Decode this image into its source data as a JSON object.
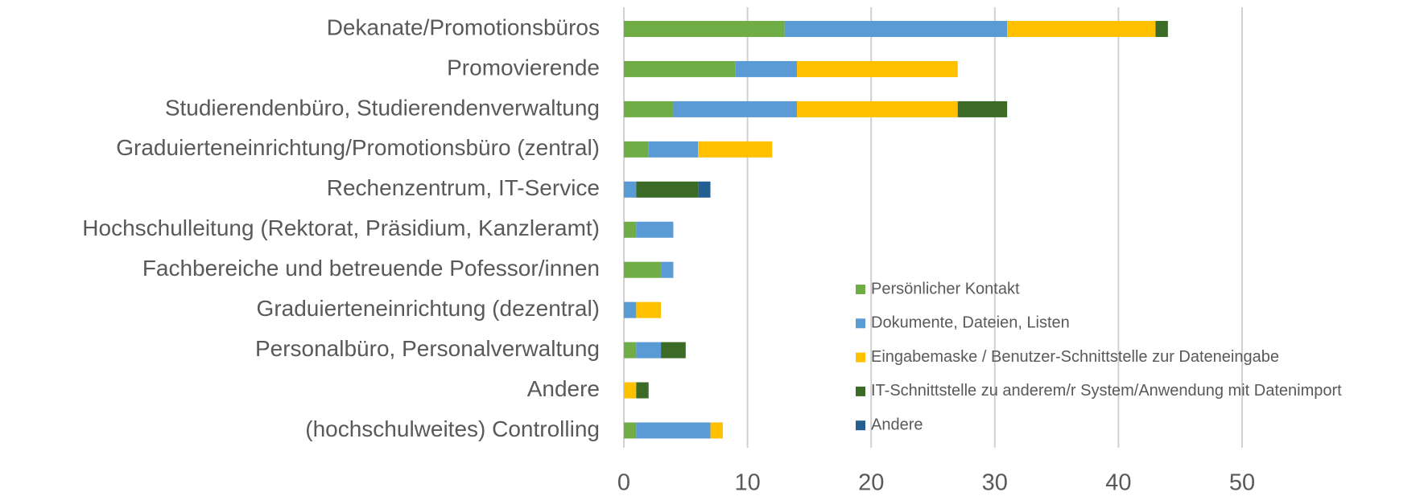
{
  "chart_data": {
    "type": "stacked_barh",
    "categories": [
      "Dekanate/Promotionsbüros",
      "Promovierende",
      "Studierendenbüro, Studierendenverwaltung",
      "Graduierteneinrichtung/Promotionsbüro (zentral)",
      "Rechenzentrum, IT-Service",
      "Hochschulleitung (Rektorat, Präsidium, Kanzleramt)",
      "Fachbereiche und betreuende Pofessor/innen",
      "Graduierteneinrichtung (dezentral)",
      "Personalbüro, Personalverwaltung",
      "Andere",
      "(hochschulweites) Controlling"
    ],
    "series": [
      {
        "name": "Persönlicher Kontakt",
        "color": "#70ad47",
        "values": [
          13,
          9,
          4,
          2,
          0,
          1,
          3,
          0,
          1,
          0,
          1
        ]
      },
      {
        "name": "Dokumente, Dateien, Listen",
        "color": "#5b9bd5",
        "values": [
          18,
          5,
          10,
          4,
          1,
          3,
          1,
          1,
          2,
          0,
          6
        ]
      },
      {
        "name": "Eingabemaske / Benutzer-Schnittstelle zur Dateneingabe",
        "color": "#ffc000",
        "values": [
          12,
          13,
          13,
          6,
          0,
          0,
          0,
          2,
          0,
          1,
          1
        ]
      },
      {
        "name": "IT-Schnittstelle zu anderem/r System/Anwendung mit Datenimport",
        "color": "#3b6b27",
        "values": [
          1,
          0,
          4,
          0,
          5,
          0,
          0,
          0,
          2,
          1,
          0
        ]
      },
      {
        "name": "Andere",
        "color": "#255e91",
        "values": [
          0,
          0,
          0,
          0,
          1,
          0,
          0,
          0,
          0,
          0,
          0
        ]
      }
    ],
    "xlim": [
      0,
      60
    ],
    "xticks": [
      0,
      10,
      20,
      30,
      40,
      50
    ],
    "grid": true,
    "legend": "lower right"
  }
}
